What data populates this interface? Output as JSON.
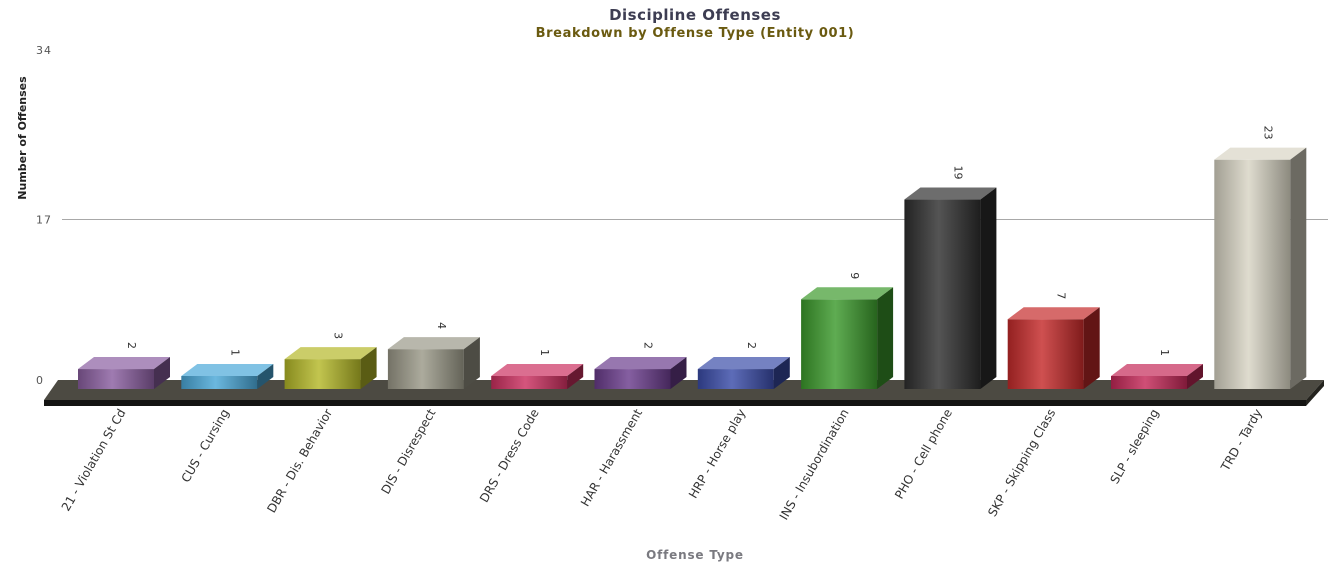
{
  "chart_data": {
    "type": "bar",
    "title": "Discipline Offenses",
    "subtitle": "Breakdown by Offense Type (Entity 001)",
    "xlabel": "Offense Type",
    "ylabel": "Number of Offenses",
    "ylim": [
      0,
      34
    ],
    "yticks": [
      "0",
      "17",
      "34"
    ],
    "grid": true,
    "categories": [
      "21 - Violation St Cd",
      "CUS - Cursing",
      "DBR - Dis. Behavior",
      "DIS - Disrespect",
      "DRS - Dress Code",
      "HAR - Harassment",
      "HRP - Horse play",
      "INS - Insubordination",
      "PHO - Cell phone",
      "SKP - Skipping Class",
      "SLP - sleeping",
      "TRD - Tardy"
    ],
    "values": [
      2,
      1,
      3,
      4,
      1,
      2,
      2,
      9,
      19,
      7,
      1,
      23
    ],
    "value_labels": [
      "2",
      "1",
      "3",
      "4",
      "1",
      "2",
      "2",
      "9",
      "19",
      "7",
      "1",
      "23"
    ],
    "colors": [
      "#8a5ea0",
      "#4aa8d8",
      "#b4b828",
      "#9a9888",
      "#cc3060",
      "#6a3c8c",
      "#3a4ca8",
      "#3c9a2c",
      "#2e2e2e",
      "#c42a2a",
      "#c42858",
      "#d8d4c4"
    ]
  }
}
